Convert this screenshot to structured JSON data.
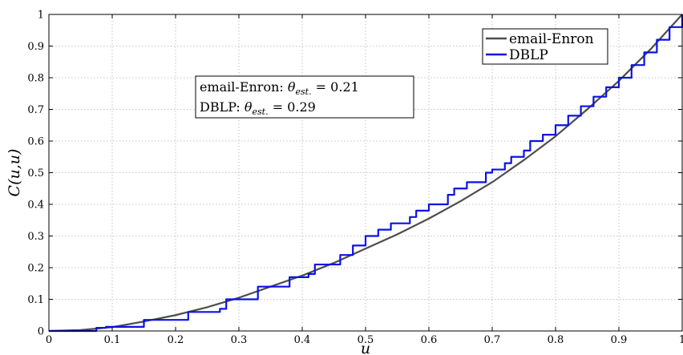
{
  "chart_data": {
    "type": "line",
    "title": "",
    "xlabel": "u",
    "ylabel": "C(u,u)",
    "xlim": [
      0,
      1
    ],
    "ylim": [
      0,
      1
    ],
    "xticks": [
      "0",
      "0.1",
      "0.2",
      "0.3",
      "0.4",
      "0.5",
      "0.6",
      "0.7",
      "0.8",
      "0.9",
      "1"
    ],
    "yticks": [
      "0",
      "0.1",
      "0.2",
      "0.3",
      "0.4",
      "0.5",
      "0.6",
      "0.7",
      "0.8",
      "0.9",
      "1"
    ],
    "grid": true,
    "legend_position": "top-right",
    "series": [
      {
        "name": "email-Enron",
        "color": "#4d4d4d",
        "style": "smooth",
        "x": [
          0,
          0.05,
          0.1,
          0.15,
          0.2,
          0.25,
          0.3,
          0.35,
          0.4,
          0.45,
          0.5,
          0.55,
          0.6,
          0.65,
          0.7,
          0.75,
          0.8,
          0.85,
          0.9,
          0.95,
          1.0
        ],
        "y": [
          0,
          0.003,
          0.012,
          0.03,
          0.05,
          0.075,
          0.105,
          0.14,
          0.175,
          0.215,
          0.26,
          0.305,
          0.355,
          0.41,
          0.47,
          0.54,
          0.615,
          0.7,
          0.79,
          0.89,
          1.0
        ]
      },
      {
        "name": "DBLP",
        "color": "#0a12e6",
        "style": "step",
        "x": [
          0,
          0.075,
          0.09,
          0.12,
          0.15,
          0.21,
          0.22,
          0.27,
          0.28,
          0.32,
          0.33,
          0.37,
          0.38,
          0.41,
          0.42,
          0.45,
          0.46,
          0.48,
          0.49,
          0.5,
          0.51,
          0.52,
          0.53,
          0.54,
          0.55,
          0.57,
          0.58,
          0.6,
          0.61,
          0.63,
          0.64,
          0.66,
          0.67,
          0.69,
          0.7,
          0.72,
          0.73,
          0.75,
          0.76,
          0.78,
          0.8,
          0.82,
          0.84,
          0.86,
          0.88,
          0.9,
          0.92,
          0.94,
          0.96,
          0.98,
          1.0
        ],
        "y": [
          0,
          0.01,
          0.013,
          0.013,
          0.035,
          0.035,
          0.06,
          0.07,
          0.1,
          0.1,
          0.14,
          0.14,
          0.17,
          0.18,
          0.21,
          0.21,
          0.24,
          0.27,
          0.27,
          0.3,
          0.3,
          0.32,
          0.32,
          0.34,
          0.34,
          0.36,
          0.38,
          0.4,
          0.4,
          0.43,
          0.45,
          0.47,
          0.47,
          0.5,
          0.51,
          0.53,
          0.55,
          0.57,
          0.6,
          0.62,
          0.65,
          0.68,
          0.71,
          0.74,
          0.77,
          0.8,
          0.84,
          0.88,
          0.92,
          0.96,
          1.0
        ]
      }
    ],
    "annotation": {
      "lines": [
        {
          "label": "email-Enron: ",
          "theta": "θ",
          "sub": "est.",
          "value": " = 0.21"
        },
        {
          "label": "DBLP: ",
          "theta": "θ",
          "sub": "est.",
          "value": " = 0.29"
        }
      ]
    }
  }
}
